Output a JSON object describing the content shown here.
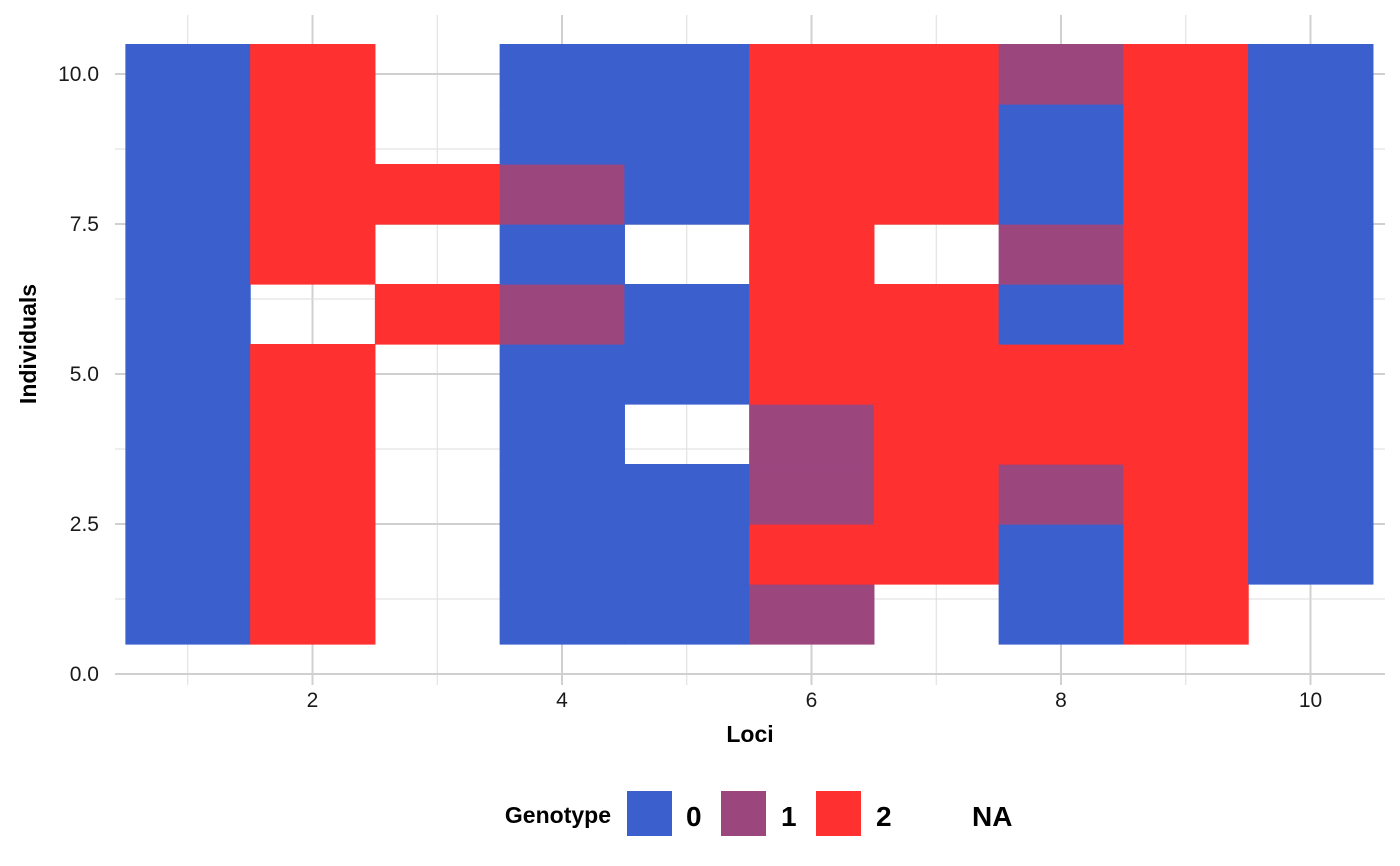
{
  "chart_data": {
    "type": "heatmap",
    "title": "",
    "xlabel": "Loci",
    "ylabel": "Individuals",
    "xlim": [
      0.5,
      10.5
    ],
    "ylim": [
      0,
      10.5
    ],
    "x_ticks": [
      2,
      4,
      6,
      8,
      10
    ],
    "x_tick_labels": [
      "2",
      "4",
      "6",
      "8",
      "10"
    ],
    "y_ticks": [
      0,
      2.5,
      5,
      7.5,
      10
    ],
    "y_tick_labels": [
      "0.0",
      "2.5",
      "5.0",
      "7.5",
      "10.0"
    ],
    "grid": true,
    "legend": {
      "title": "Genotype",
      "position": "bottom",
      "items": [
        {
          "label": "0",
          "color": "#3B5FCD"
        },
        {
          "label": "1",
          "color": "#9B477E"
        },
        {
          "label": "2",
          "color": "#FF3030"
        },
        {
          "label": "NA",
          "color": "#FFFFFF"
        }
      ]
    },
    "colors": {
      "0": "#3B5FCD",
      "1": "#9B477E",
      "2": "#FF3030"
    },
    "loci": [
      1,
      2,
      3,
      4,
      5,
      6,
      7,
      8,
      9,
      10
    ],
    "individuals": [
      1,
      2,
      3,
      4,
      5,
      6,
      7,
      8,
      9,
      10
    ],
    "genotypes_by_locus": [
      [
        0,
        0,
        0,
        0,
        0,
        0,
        0,
        0,
        0,
        0
      ],
      [
        2,
        2,
        2,
        2,
        2,
        null,
        2,
        2,
        2,
        2
      ],
      [
        null,
        null,
        null,
        null,
        null,
        2,
        null,
        2,
        null,
        null
      ],
      [
        0,
        0,
        0,
        0,
        0,
        1,
        0,
        1,
        0,
        0
      ],
      [
        0,
        0,
        0,
        null,
        0,
        0,
        null,
        0,
        0,
        0
      ],
      [
        1,
        2,
        1,
        1,
        2,
        2,
        2,
        2,
        2,
        2
      ],
      [
        null,
        2,
        2,
        2,
        2,
        2,
        null,
        2,
        2,
        2
      ],
      [
        0,
        0,
        1,
        2,
        2,
        0,
        1,
        0,
        0,
        1
      ],
      [
        2,
        2,
        2,
        2,
        2,
        2,
        2,
        2,
        2,
        2
      ],
      [
        null,
        0,
        0,
        0,
        0,
        0,
        0,
        0,
        0,
        0
      ]
    ]
  }
}
